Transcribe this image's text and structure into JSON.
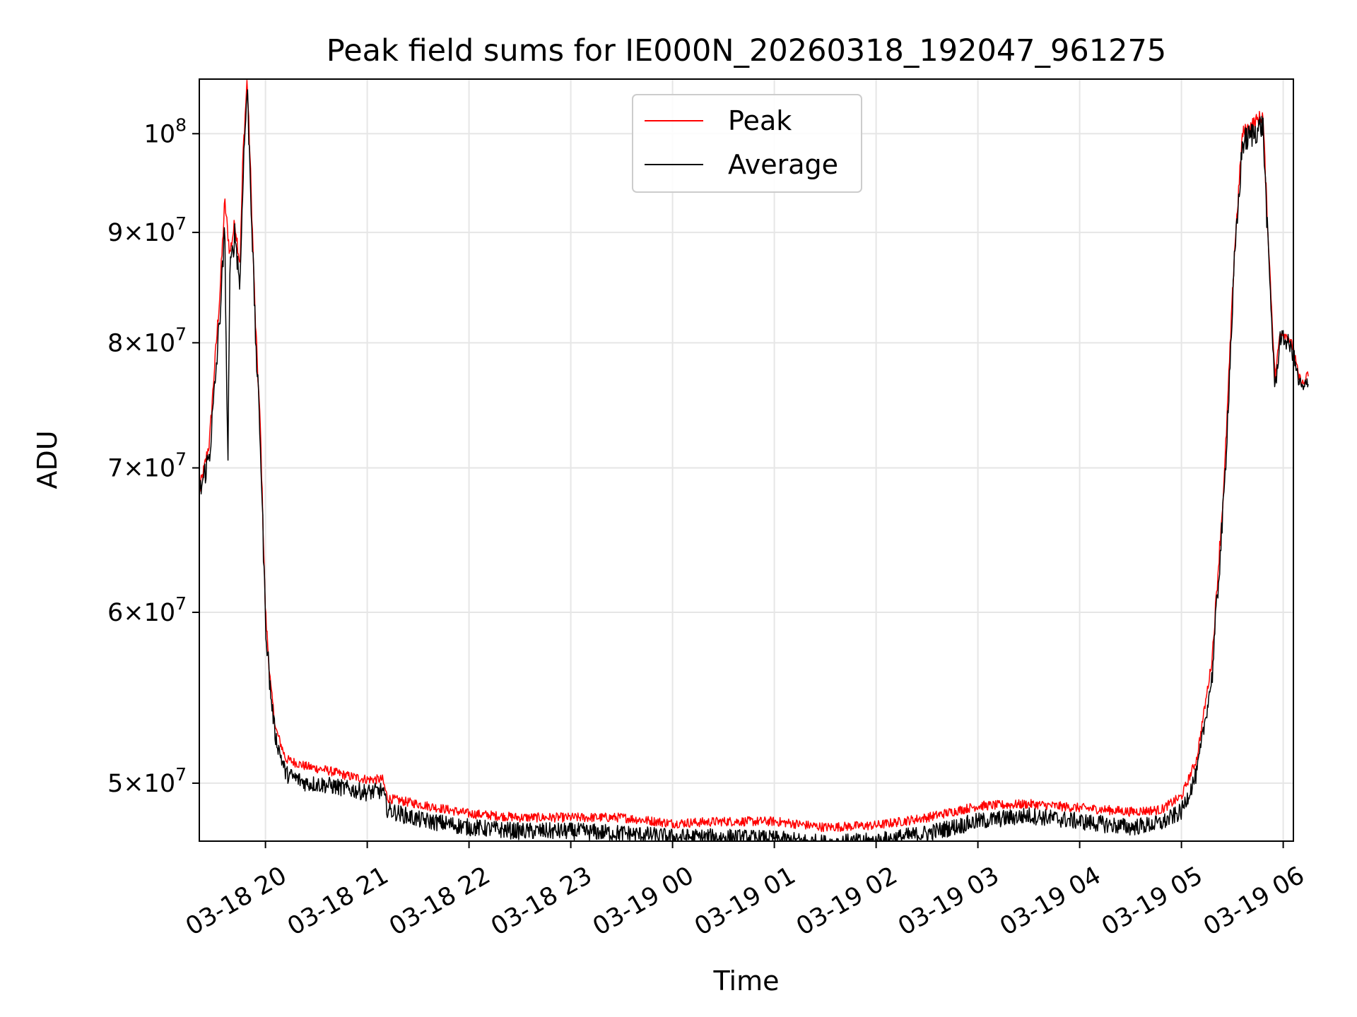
{
  "chart_data": {
    "type": "line",
    "title": "Peak field sums for IE000N_20260318_192047_961275",
    "xlabel": "Time",
    "ylabel": "ADU",
    "yscale": "log",
    "xlim_hours": [
      -0.65,
      10.1
    ],
    "ylim": [
      47000000,
      106000000
    ],
    "grid": true,
    "legend_position": "upper center",
    "x_unit": "hours since 03-18 20:00",
    "x_ticks": [
      {
        "value": 0,
        "label": "03-18 20"
      },
      {
        "value": 1,
        "label": "03-18 21"
      },
      {
        "value": 2,
        "label": "03-18 22"
      },
      {
        "value": 3,
        "label": "03-18 23"
      },
      {
        "value": 4,
        "label": "03-19 00"
      },
      {
        "value": 5,
        "label": "03-19 01"
      },
      {
        "value": 6,
        "label": "03-19 02"
      },
      {
        "value": 7,
        "label": "03-19 03"
      },
      {
        "value": 8,
        "label": "03-19 04"
      },
      {
        "value": 9,
        "label": "03-19 05"
      },
      {
        "value": 10,
        "label": "03-19 06"
      }
    ],
    "y_ticks": [
      {
        "value": 50000000,
        "mantissa": "5",
        "base": "10",
        "exp": "7"
      },
      {
        "value": 60000000,
        "mantissa": "6",
        "base": "10",
        "exp": "7"
      },
      {
        "value": 70000000,
        "mantissa": "7",
        "base": "10",
        "exp": "7"
      },
      {
        "value": 80000000,
        "mantissa": "8",
        "base": "10",
        "exp": "7"
      },
      {
        "value": 90000000,
        "mantissa": "9",
        "base": "10",
        "exp": "7"
      },
      {
        "value": 100000000,
        "mantissa": "",
        "base": "10",
        "exp": "8"
      }
    ],
    "series": [
      {
        "name": "Peak",
        "color": "#ff0000",
        "points": [
          [
            -0.65,
            68300000
          ],
          [
            -0.6,
            70000000
          ],
          [
            -0.55,
            72000000
          ],
          [
            -0.5,
            78000000
          ],
          [
            -0.45,
            84000000
          ],
          [
            -0.4,
            93000000
          ],
          [
            -0.35,
            88000000
          ],
          [
            -0.3,
            91000000
          ],
          [
            -0.25,
            87000000
          ],
          [
            -0.22,
            98000000
          ],
          [
            -0.18,
            106000000
          ],
          [
            -0.15,
            97000000
          ],
          [
            -0.1,
            82000000
          ],
          [
            -0.05,
            73000000
          ],
          [
            0.0,
            60000000
          ],
          [
            0.05,
            55500000
          ],
          [
            0.1,
            53000000
          ],
          [
            0.2,
            51300000
          ],
          [
            0.4,
            50900000
          ],
          [
            0.6,
            50700000
          ],
          [
            0.8,
            50400000
          ],
          [
            1.0,
            50200000
          ],
          [
            1.15,
            50200000
          ],
          [
            1.2,
            49200000
          ],
          [
            1.5,
            48900000
          ],
          [
            2.0,
            48400000
          ],
          [
            2.5,
            48200000
          ],
          [
            3.0,
            48200000
          ],
          [
            3.5,
            48200000
          ],
          [
            4.0,
            47900000
          ],
          [
            4.5,
            48000000
          ],
          [
            5.0,
            48000000
          ],
          [
            5.5,
            47700000
          ],
          [
            6.0,
            47800000
          ],
          [
            6.5,
            48200000
          ],
          [
            7.0,
            48800000
          ],
          [
            7.5,
            48900000
          ],
          [
            8.0,
            48700000
          ],
          [
            8.5,
            48500000
          ],
          [
            8.8,
            48600000
          ],
          [
            9.0,
            49300000
          ],
          [
            9.15,
            51300000
          ],
          [
            9.3,
            57000000
          ],
          [
            9.42,
            69000000
          ],
          [
            9.52,
            88000000
          ],
          [
            9.6,
            100000000
          ],
          [
            9.7,
            101000000
          ],
          [
            9.8,
            102000000
          ],
          [
            9.85,
            90000000
          ],
          [
            9.92,
            77000000
          ],
          [
            9.97,
            81000000
          ],
          [
            10.05,
            80500000
          ],
          [
            10.1,
            79500000
          ],
          [
            10.15,
            77200000
          ],
          [
            10.2,
            76500000
          ],
          [
            10.25,
            77500000
          ]
        ]
      },
      {
        "name": "Average",
        "color": "#000000",
        "points": [
          [
            -0.65,
            68000000
          ],
          [
            -0.6,
            69500000
          ],
          [
            -0.55,
            71000000
          ],
          [
            -0.5,
            76000000
          ],
          [
            -0.45,
            82000000
          ],
          [
            -0.4,
            90000000
          ],
          [
            -0.37,
            70000000
          ],
          [
            -0.35,
            86000000
          ],
          [
            -0.3,
            90000000
          ],
          [
            -0.25,
            85000000
          ],
          [
            -0.22,
            96000000
          ],
          [
            -0.18,
            105000000
          ],
          [
            -0.15,
            96000000
          ],
          [
            -0.1,
            81000000
          ],
          [
            -0.05,
            72000000
          ],
          [
            0.0,
            59500000
          ],
          [
            0.05,
            55000000
          ],
          [
            0.1,
            52500000
          ],
          [
            0.2,
            50500000
          ],
          [
            0.4,
            50000000
          ],
          [
            0.6,
            49900000
          ],
          [
            0.8,
            49700000
          ],
          [
            1.0,
            49500000
          ],
          [
            1.15,
            49600000
          ],
          [
            1.2,
            48600000
          ],
          [
            1.5,
            48100000
          ],
          [
            2.0,
            47700000
          ],
          [
            2.5,
            47500000
          ],
          [
            3.0,
            47500000
          ],
          [
            3.5,
            47400000
          ],
          [
            4.0,
            47200000
          ],
          [
            4.5,
            47200000
          ],
          [
            5.0,
            47100000
          ],
          [
            5.5,
            46900000
          ],
          [
            6.0,
            47000000
          ],
          [
            6.5,
            47400000
          ],
          [
            7.0,
            48000000
          ],
          [
            7.5,
            48300000
          ],
          [
            8.0,
            48000000
          ],
          [
            8.5,
            47700000
          ],
          [
            8.8,
            47900000
          ],
          [
            9.0,
            48500000
          ],
          [
            9.15,
            50500000
          ],
          [
            9.3,
            56000000
          ],
          [
            9.42,
            68000000
          ],
          [
            9.52,
            87000000
          ],
          [
            9.6,
            99000000
          ],
          [
            9.7,
            100000000
          ],
          [
            9.8,
            101000000
          ],
          [
            9.85,
            89000000
          ],
          [
            9.92,
            76000000
          ],
          [
            9.97,
            80500000
          ],
          [
            10.05,
            80000000
          ],
          [
            10.1,
            79000000
          ],
          [
            10.15,
            76800000
          ],
          [
            10.2,
            76000000
          ],
          [
            10.25,
            77000000
          ]
        ]
      }
    ]
  }
}
